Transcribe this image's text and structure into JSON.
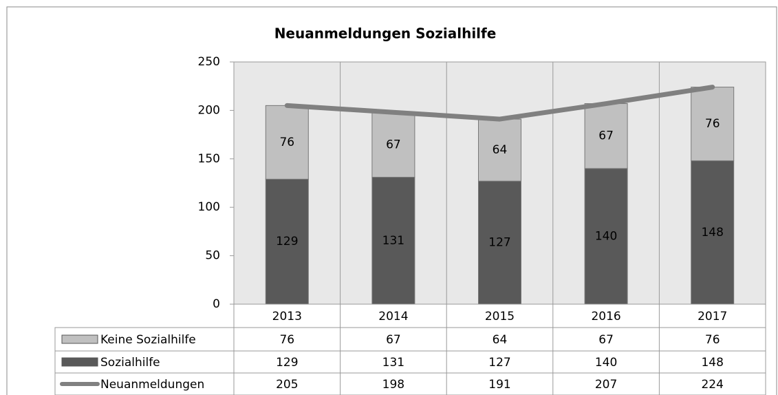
{
  "chart_data": {
    "type": "bar",
    "stacked": true,
    "title": "Neuanmeldungen Sozialhilfe",
    "categories": [
      "2013",
      "2014",
      "2015",
      "2016",
      "2017"
    ],
    "series": [
      {
        "name": "Sozialhilfe",
        "type": "bar",
        "color": "#595959",
        "values": [
          129,
          131,
          127,
          140,
          148
        ]
      },
      {
        "name": "Keine Sozialhilfe",
        "type": "bar",
        "color": "#c0c0c0",
        "values": [
          76,
          67,
          64,
          67,
          76
        ]
      },
      {
        "name": "Neuanmeldungen",
        "type": "line",
        "color": "#808080",
        "values": [
          205,
          198,
          191,
          207,
          224
        ]
      }
    ],
    "ylim": [
      0,
      250
    ],
    "yticks": [
      0,
      50,
      100,
      150,
      200,
      250
    ],
    "data_table": true
  }
}
